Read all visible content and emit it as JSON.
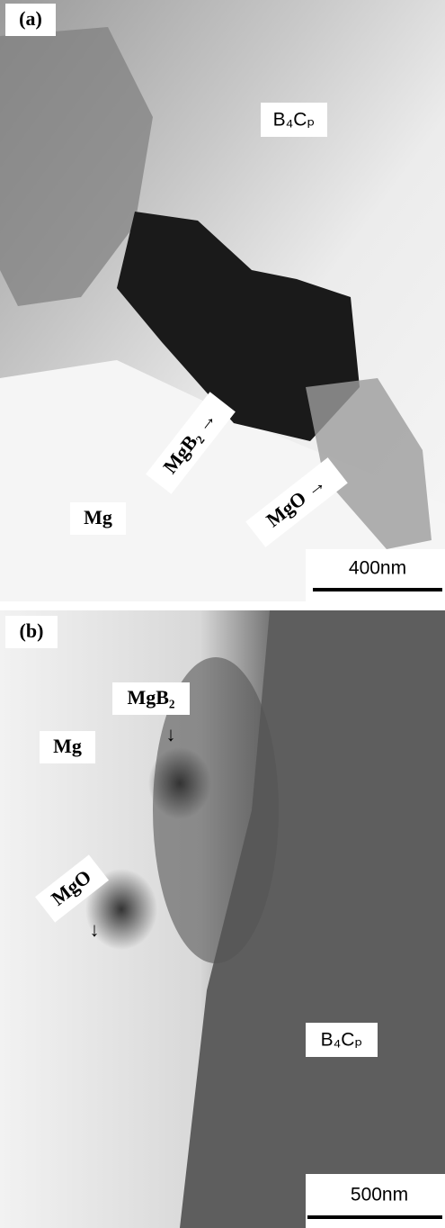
{
  "panels": [
    {
      "label": "(a)",
      "phase_labels": [
        "B₄Cₚ",
        "MgB₂ →",
        "Mg",
        "MgO →"
      ],
      "scale_bar": "400nm"
    },
    {
      "label": "(b)",
      "phase_labels": [
        "MgB₂",
        "↓",
        "Mg",
        "MgO",
        "↓",
        "B₄Cₚ"
      ],
      "scale_bar": "500nm"
    }
  ]
}
